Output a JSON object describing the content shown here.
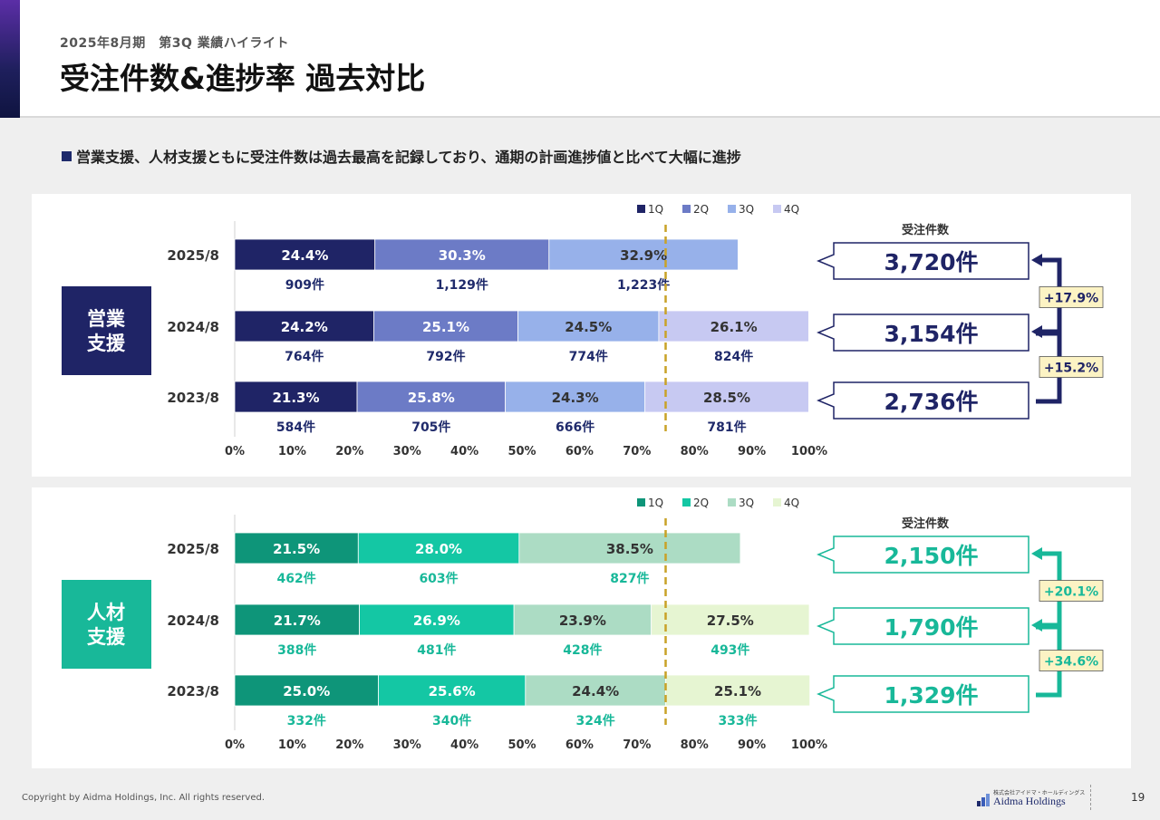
{
  "header": {
    "subtitle": "2025年8月期　第3Q 業績ハイライト",
    "title": "受注件数&進捗率 過去対比"
  },
  "lead": "営業支援、人材支援ともに受注件数は過去最高を記録しており、通期の計画進捗値と比べて大幅に進捗",
  "chart_data": [
    {
      "type": "bar",
      "orientation": "horizontal-stacked-100",
      "segment_label": "営業\n支援",
      "legend": [
        "1Q",
        "2Q",
        "3Q",
        "4Q"
      ],
      "colors": [
        "#1f2466",
        "#6c7bc6",
        "#97b1ea",
        "#c7c9f2"
      ],
      "label_colors": [
        "#ffffff",
        "#ffffff",
        "#333333",
        "#333333"
      ],
      "count_color": "#1f2a6b",
      "categories": [
        "2025/8",
        "2024/8",
        "2023/8"
      ],
      "series": [
        {
          "name": "1Q",
          "values": [
            24.4,
            24.2,
            21.3
          ],
          "counts": [
            "909件",
            "764件",
            "584件"
          ]
        },
        {
          "name": "2Q",
          "values": [
            30.3,
            25.1,
            25.8
          ],
          "counts": [
            "1,129件",
            "792件",
            "705件"
          ]
        },
        {
          "name": "3Q",
          "values": [
            32.9,
            24.5,
            24.3
          ],
          "counts": [
            "1,223件",
            "774件",
            "666件"
          ]
        },
        {
          "name": "4Q",
          "values": [
            null,
            26.1,
            28.5
          ],
          "counts": [
            null,
            "824件",
            "781件"
          ]
        }
      ],
      "xlim": [
        0,
        100
      ],
      "xticks": [
        "0%",
        "10%",
        "20%",
        "30%",
        "40%",
        "50%",
        "60%",
        "70%",
        "80%",
        "90%",
        "100%"
      ],
      "reference_line": 75,
      "totals_header": "受注件数",
      "totals": [
        "3,720件",
        "3,154件",
        "2,736件"
      ],
      "growth": [
        "+17.9%",
        "+15.2%"
      ],
      "accent": "#1f2466"
    },
    {
      "type": "bar",
      "orientation": "horizontal-stacked-100",
      "segment_label": "人材\n支援",
      "legend": [
        "1Q",
        "2Q",
        "3Q",
        "4Q"
      ],
      "colors": [
        "#0e9579",
        "#14c7a4",
        "#acdcc4",
        "#e6f5d2"
      ],
      "label_colors": [
        "#ffffff",
        "#ffffff",
        "#333333",
        "#333333"
      ],
      "count_color": "#18b899",
      "categories": [
        "2025/8",
        "2024/8",
        "2023/8"
      ],
      "series": [
        {
          "name": "1Q",
          "values": [
            21.5,
            21.7,
            25.0
          ],
          "counts": [
            "462件",
            "388件",
            "332件"
          ]
        },
        {
          "name": "2Q",
          "values": [
            28.0,
            26.9,
            25.6
          ],
          "counts": [
            "603件",
            "481件",
            "340件"
          ]
        },
        {
          "name": "3Q",
          "values": [
            38.5,
            23.9,
            24.4
          ],
          "counts": [
            "827件",
            "428件",
            "324件"
          ]
        },
        {
          "name": "4Q",
          "values": [
            null,
            27.5,
            25.1
          ],
          "counts": [
            null,
            "493件",
            "333件"
          ]
        }
      ],
      "xlim": [
        0,
        100
      ],
      "xticks": [
        "0%",
        "10%",
        "20%",
        "30%",
        "40%",
        "50%",
        "60%",
        "70%",
        "80%",
        "90%",
        "100%"
      ],
      "reference_line": 75,
      "totals_header": "受注件数",
      "totals": [
        "2,150件",
        "1,790件",
        "1,329件"
      ],
      "growth": [
        "+20.1%",
        "+34.6%"
      ],
      "accent": "#18b899"
    }
  ],
  "footer": {
    "copyright": "Copyright by Aidma Holdings, Inc. All rights reserved.",
    "logo_sub": "株式会社アイドマ・ホールディングス",
    "logo_main": "Aidma Holdings",
    "page": "19"
  }
}
